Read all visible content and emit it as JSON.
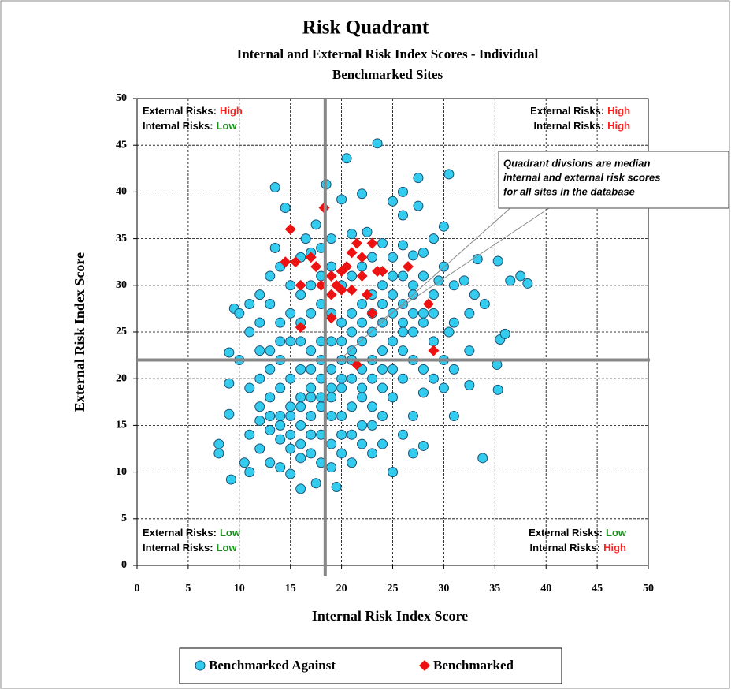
{
  "chart_data": {
    "type": "scatter",
    "title": "Risk Quadrant",
    "subtitle": [
      "Internal and External Risk Index Scores - Individual",
      "Benchmarked Sites"
    ],
    "x_label": "Internal Risk Index Score",
    "y_label": "External Risk Index Score",
    "xlim": [
      0,
      50
    ],
    "ylim": [
      0,
      50
    ],
    "xticks": [
      0,
      5,
      10,
      15,
      20,
      25,
      30,
      35,
      40,
      45,
      50
    ],
    "yticks": [
      0,
      5,
      10,
      15,
      20,
      25,
      30,
      35,
      40,
      45,
      50
    ],
    "grid": true,
    "medians": {
      "x": 18.4,
      "y": 22
    },
    "level_colors": {
      "High": "#ff2020",
      "Low": "#1e8c1e"
    },
    "quadrants": [
      {
        "corner": "top-left",
        "lines": [
          {
            "label": "External Risks:",
            "level": "High"
          },
          {
            "label": "Internal Risks:",
            "level": "Low"
          }
        ]
      },
      {
        "corner": "top-right",
        "lines": [
          {
            "label": "External Risks:",
            "level": "High"
          },
          {
            "label": "Internal Risks:",
            "level": "High"
          }
        ]
      },
      {
        "corner": "bottom-left",
        "lines": [
          {
            "label": "External Risks:",
            "level": "Low"
          },
          {
            "label": "Internal Risks:",
            "level": "Low"
          }
        ]
      },
      {
        "corner": "bottom-right",
        "lines": [
          {
            "label": "External Risks:",
            "level": "Low"
          },
          {
            "label": "Internal Risks:",
            "level": "High"
          }
        ]
      }
    ],
    "annotation": [
      "Quadrant divsions are median",
      "internal and external risk scores",
      "for all sites in the database"
    ],
    "legend": "bottom",
    "series": [
      {
        "name": "Benchmarked Against",
        "color": "#33ccee",
        "marker": "circle",
        "x": [
          8,
          8,
          9.2,
          9,
          9,
          9,
          9.5,
          10.5,
          11,
          13.5,
          14.5,
          17.5,
          18.5,
          20.5,
          23.5,
          27.5,
          30.5,
          26,
          22,
          20,
          25,
          27.5,
          26,
          30,
          33.3,
          35.3,
          36.5,
          37.5,
          38.2,
          35.5,
          36,
          35.2,
          35.3,
          33.8,
          31,
          32.5,
          25,
          19.5,
          16,
          17.5,
          12,
          11,
          12,
          13,
          14,
          15,
          14,
          13,
          12,
          11,
          10,
          15,
          16,
          13.5,
          16.5,
          17,
          18,
          19,
          21,
          22.5,
          24,
          25,
          26,
          27,
          28,
          29,
          30,
          29.5,
          31,
          32,
          33,
          34,
          32.5,
          31,
          30.5,
          29,
          30,
          32.5,
          31,
          30,
          28,
          27,
          26,
          28,
          27,
          24,
          23,
          22,
          21,
          20,
          19,
          18,
          17,
          16,
          15,
          14,
          13,
          12,
          14,
          15,
          16,
          17,
          18,
          19,
          20,
          21,
          22,
          23,
          24,
          25,
          26,
          27,
          28,
          27,
          26,
          25,
          24,
          23,
          22,
          21,
          20,
          19,
          18,
          17,
          16,
          15,
          14,
          13,
          12,
          13,
          14,
          15,
          16,
          17,
          18,
          19,
          20,
          21,
          22,
          23,
          24,
          25,
          26,
          27,
          28,
          29,
          28,
          29,
          27,
          26,
          25,
          24,
          23,
          22,
          21,
          20,
          19,
          18,
          17,
          16,
          15,
          14,
          13,
          12,
          11,
          10,
          11,
          12,
          13,
          14,
          20,
          21,
          22,
          23,
          19,
          18,
          17,
          16,
          15,
          16,
          17,
          18,
          19,
          20,
          21,
          22,
          23,
          24,
          25,
          26,
          27,
          28,
          29,
          26,
          25,
          24,
          23,
          22,
          21,
          20,
          19,
          18,
          17,
          16,
          15,
          14,
          13,
          24,
          23,
          22,
          21,
          20,
          19,
          18,
          17,
          16
        ],
        "values": [
          13,
          12,
          9.2,
          22.8,
          19.5,
          16.2,
          27.5,
          11,
          10,
          40.5,
          38.3,
          36.5,
          40.8,
          43.6,
          45.2,
          41.5,
          41.9,
          40,
          39.8,
          39.2,
          39,
          38.5,
          37.5,
          36.3,
          32.8,
          32.6,
          30.5,
          31,
          30.2,
          24.2,
          24.8,
          21.5,
          18.8,
          11.5,
          16,
          19.3,
          10,
          8.4,
          8.2,
          8.8,
          17,
          14,
          12.5,
          11,
          10.5,
          9.8,
          24,
          28,
          26,
          25,
          22,
          30,
          33,
          34,
          35,
          33.5,
          34,
          35,
          35.5,
          35.7,
          34.5,
          33,
          34.3,
          33.2,
          33.5,
          35,
          32,
          30.5,
          30,
          30.5,
          29,
          28,
          27,
          26,
          25,
          24,
          22,
          23,
          21,
          19,
          18.5,
          16,
          14,
          12.8,
          12,
          13,
          12,
          13,
          11,
          12,
          10.5,
          11,
          12,
          11.5,
          12.5,
          13.5,
          14.5,
          15.5,
          16,
          17,
          18,
          19,
          20,
          21,
          22,
          23,
          24,
          25,
          26,
          27,
          28,
          29,
          27,
          25,
          23,
          21,
          19,
          17,
          15,
          14,
          16,
          18,
          17,
          16,
          15,
          14,
          19,
          21,
          20,
          23,
          26,
          27,
          29,
          30,
          28,
          27,
          26,
          27,
          28,
          29,
          30,
          31,
          31,
          30,
          31,
          29,
          26,
          27,
          27,
          26,
          24,
          23,
          22,
          21,
          20,
          19,
          19,
          22,
          23,
          24,
          24,
          22,
          18,
          23,
          19,
          27,
          28,
          29,
          31,
          32,
          30,
          31,
          32,
          33,
          32,
          31,
          27,
          26,
          20,
          21,
          21,
          24,
          24,
          24,
          25,
          26,
          27,
          28,
          29,
          25,
          22,
          21,
          20,
          20,
          18,
          16,
          15,
          18,
          17,
          14,
          13,
          14,
          14,
          13,
          16,
          15,
          16,
          21,
          20,
          19,
          22,
          20,
          16,
          18,
          18,
          17
        ]
      },
      {
        "name": "Benchmarked",
        "color": "#ee1111",
        "marker": "diamond",
        "x": [
          15,
          15.5,
          14.5,
          16,
          16,
          17,
          17.5,
          18,
          18.3,
          19,
          19.5,
          19,
          20,
          20.5,
          21,
          21.5,
          21,
          22,
          22,
          22.5,
          23,
          23,
          23.5,
          24,
          26.5,
          28.5,
          29,
          21.5,
          19,
          20
        ],
        "values": [
          36,
          32.5,
          32.5,
          30,
          25.5,
          33,
          32,
          30,
          38.3,
          31,
          30,
          26.5,
          31.5,
          32,
          33.5,
          34.5,
          29.5,
          31,
          33,
          29,
          34.5,
          27,
          31.5,
          31.5,
          32,
          28,
          23,
          21.5,
          29,
          29.5
        ]
      }
    ]
  }
}
